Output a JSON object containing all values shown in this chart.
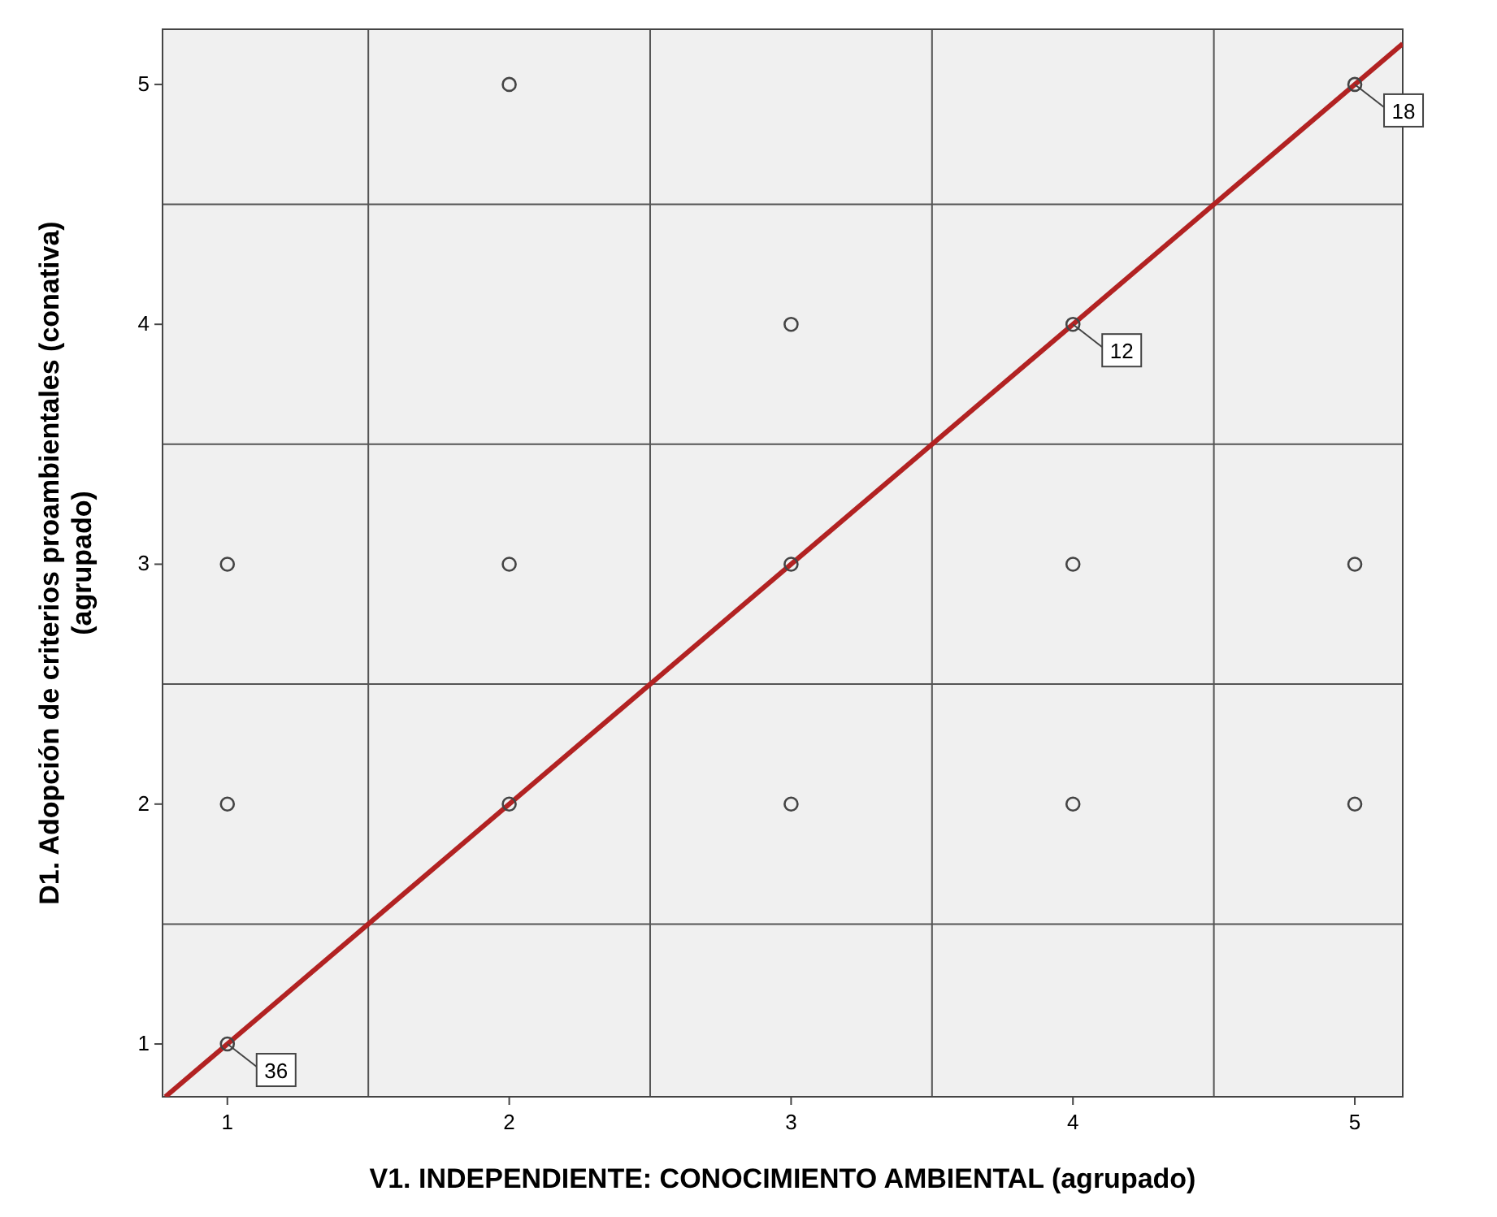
{
  "chart_data": {
    "type": "scatter",
    "xlabel": "V1. INDEPENDIENTE: CONOCIMIENTO AMBIENTAL (agrupado)",
    "ylabel": "D1. Adopción de criterios proambientales (conativa)\n(agrupado)",
    "xlim": [
      0.77,
      5.17
    ],
    "ylim": [
      0.78,
      5.23
    ],
    "xticks": [
      1,
      {
        "value": 1.5,
        "label": null
      },
      2,
      {
        "value": 2.5,
        "label": null
      },
      3,
      {
        "value": 3.5,
        "label": null
      },
      4,
      {
        "value": 4.5,
        "label": null
      },
      5
    ],
    "yticks": [
      1,
      {
        "value": 1.5,
        "label": null
      },
      2,
      {
        "value": 2.5,
        "label": null
      },
      3,
      {
        "value": 3.5,
        "label": null
      },
      4,
      {
        "value": 4.5,
        "label": null
      },
      5
    ],
    "grid": true,
    "series": [
      {
        "marker": "circle",
        "color": "#444444",
        "x": [
          1,
          1,
          1,
          2,
          2,
          2,
          3,
          3,
          3,
          4,
          4,
          4,
          5,
          5,
          5
        ],
        "values": [
          1,
          2,
          3,
          2,
          3,
          5,
          2,
          3,
          4,
          2,
          3,
          4,
          2,
          3,
          5
        ]
      },
      {
        "type": "line",
        "color": "#b22222",
        "x": [
          0.78,
          5.17
        ],
        "values": [
          0.78,
          5.17
        ]
      }
    ],
    "annotations": [
      {
        "text": "36",
        "x": 1,
        "y": 1
      },
      {
        "text": "12",
        "x": 4,
        "y": 4
      },
      {
        "text": "18",
        "x": 5,
        "y": 5
      }
    ]
  }
}
